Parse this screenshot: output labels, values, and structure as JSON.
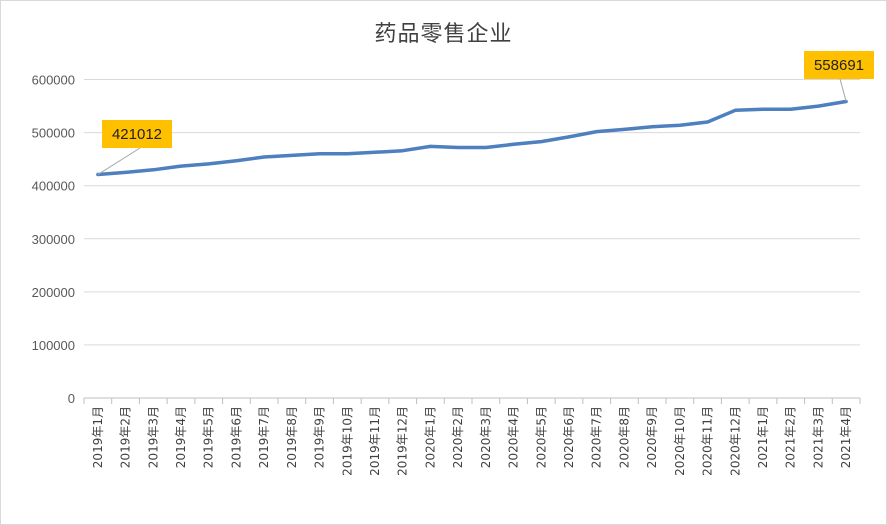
{
  "chart_data": {
    "type": "line",
    "title": "药品零售企业",
    "xlabel": "",
    "ylabel": "",
    "ylim": [
      0,
      650000
    ],
    "yticks": [
      0,
      100000,
      200000,
      300000,
      400000,
      500000,
      600000
    ],
    "grid": true,
    "legend": "none",
    "categories": [
      "2019年1月",
      "2019年2月",
      "2019年3月",
      "2019年4月",
      "2019年5月",
      "2019年6月",
      "2019年7月",
      "2019年8月",
      "2019年9月",
      "2019年10月",
      "2019年11月",
      "2019年12月",
      "2020年1月",
      "2020年2月",
      "2020年3月",
      "2020年4月",
      "2020年5月",
      "2020年6月",
      "2020年7月",
      "2020年8月",
      "2020年9月",
      "2020年10月",
      "2020年11月",
      "2020年12月",
      "2021年1月",
      "2021年2月",
      "2021年3月",
      "2021年4月"
    ],
    "series": [
      {
        "values": [
          421012,
          425000,
          430000,
          437000,
          441000,
          447000,
          454000,
          457000,
          460000,
          460000,
          463000,
          466000,
          474000,
          472000,
          472000,
          478000,
          483000,
          492000,
          502000,
          506000,
          511000,
          514000,
          520000,
          542000,
          544000,
          544000,
          550000,
          558691
        ]
      }
    ],
    "annotations": [
      {
        "label": "421012",
        "index": 0
      },
      {
        "label": "558691",
        "index": 27
      }
    ],
    "colors": {
      "line": "#4e7fbf",
      "callout_fill": "#ffc000",
      "grid": "#d9d9d9",
      "axis": "#bfbfbf"
    }
  }
}
